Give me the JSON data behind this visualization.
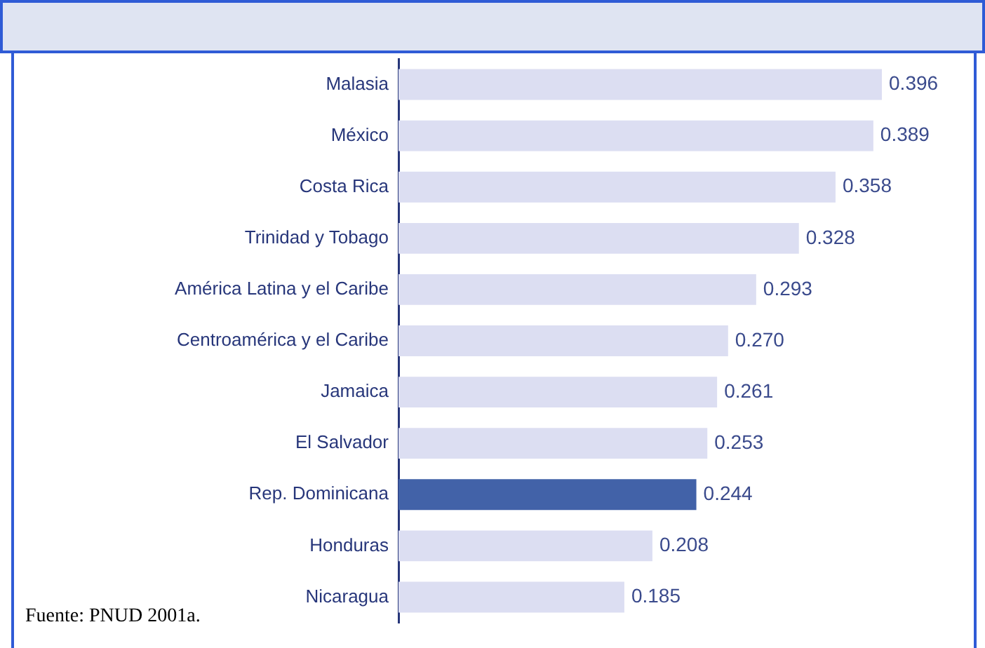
{
  "chart_data": {
    "type": "bar",
    "orientation": "horizontal",
    "categories": [
      "Malasia",
      "México",
      "Costa Rica",
      "Trinidad y Tobago",
      "América Latina y el Caribe",
      "Centroamérica y el Caribe",
      "Jamaica",
      "El Salvador",
      "Rep. Dominicana",
      "Honduras",
      "Nicaragua"
    ],
    "values": [
      0.396,
      0.389,
      0.358,
      0.328,
      0.293,
      0.27,
      0.261,
      0.253,
      0.244,
      0.208,
      0.185
    ],
    "colors": [
      "#dcdef2",
      "#dcdef2",
      "#dcdef2",
      "#dcdef2",
      "#dcdef2",
      "#dcdef2",
      "#dcdef2",
      "#dcdef2",
      "#4262a8",
      "#dcdef2",
      "#dcdef2"
    ],
    "tick_labels": "y",
    "value_labels": [
      "0.396",
      "0.389",
      "0.358",
      "0.328",
      "0.293",
      "0.270",
      "0.261",
      "0.253",
      "0.244",
      "0.208",
      "0.185"
    ],
    "annotations": [
      "Fuente: PNUD 2001a."
    ]
  }
}
